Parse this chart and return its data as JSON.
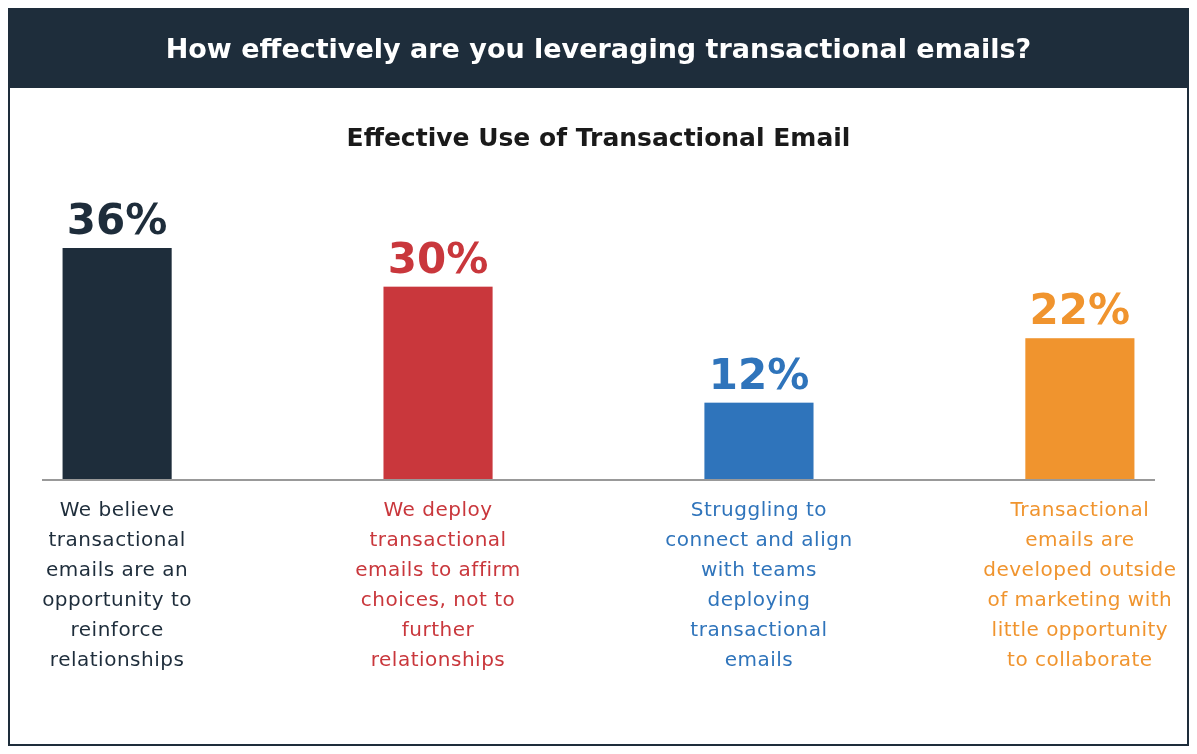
{
  "chart_data": {
    "type": "bar",
    "title": "How effectively are you leveraging transactional emails?",
    "subtitle": "Effective Use of Transactional Email",
    "categories": [
      "We believe transactional emails are an opportunity to reinforce relationships",
      "We deploy transactional emails to affirm choices, not to further relationships",
      "Struggling to connect and align with teams deploying transactional emails",
      "Transactional emails are developed outside of marketing with little opportunity to collaborate"
    ],
    "values": [
      36,
      30,
      12,
      22
    ],
    "colors": [
      "#1e2d3b",
      "#c9373c",
      "#2f74bb",
      "#f0942e"
    ],
    "value_labels": [
      "36%",
      "30%",
      "12%",
      "22%"
    ]
  }
}
